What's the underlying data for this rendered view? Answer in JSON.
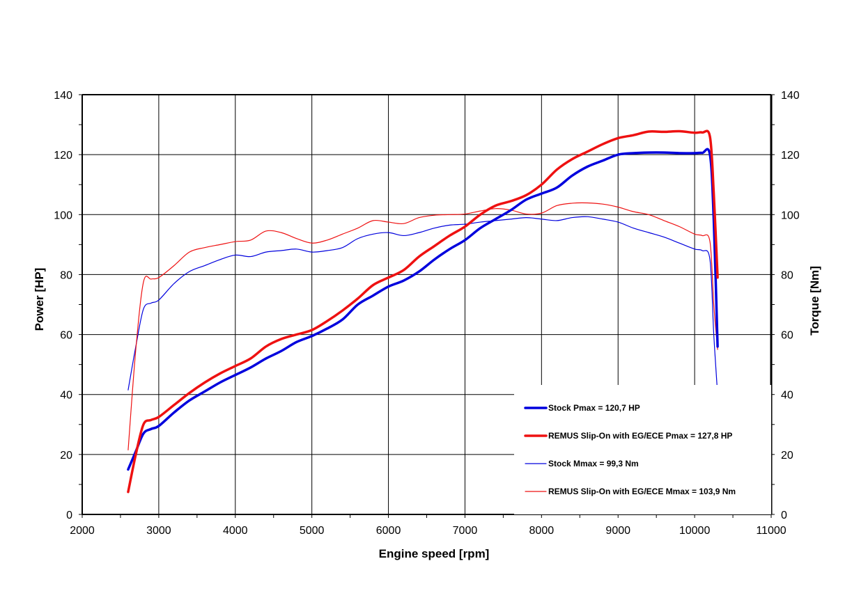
{
  "chart_data": {
    "type": "line",
    "xlabel": "Engine speed [rpm]",
    "ylabel_left": "Power [HP]",
    "ylabel_right": "Torque [Nm]",
    "xlim": [
      2000,
      11000
    ],
    "ylim_left": [
      0,
      140
    ],
    "ylim_right": [
      0,
      140
    ],
    "x_ticks": [
      2000,
      3000,
      4000,
      5000,
      6000,
      7000,
      8000,
      9000,
      10000,
      11000
    ],
    "y_ticks_left": [
      0,
      20,
      40,
      60,
      80,
      100,
      120,
      140
    ],
    "y_ticks_right": [
      0,
      20,
      40,
      60,
      80,
      100,
      120,
      140
    ],
    "grid": true,
    "legend_position": "bottom-right",
    "series": [
      {
        "name": "Stock Pmax = 120,7 HP",
        "axis": "left",
        "color": "#0000dd",
        "width": 3.5,
        "points": [
          [
            2600,
            15
          ],
          [
            2700,
            21
          ],
          [
            2800,
            27
          ],
          [
            2900,
            28.5
          ],
          [
            3000,
            29.5
          ],
          [
            3200,
            34
          ],
          [
            3400,
            38
          ],
          [
            3600,
            41
          ],
          [
            3800,
            44
          ],
          [
            4000,
            46.5
          ],
          [
            4200,
            49
          ],
          [
            4400,
            52
          ],
          [
            4600,
            54.5
          ],
          [
            4800,
            57.5
          ],
          [
            5000,
            59.5
          ],
          [
            5200,
            62
          ],
          [
            5400,
            65
          ],
          [
            5600,
            70
          ],
          [
            5800,
            73
          ],
          [
            6000,
            76
          ],
          [
            6200,
            78
          ],
          [
            6400,
            81
          ],
          [
            6600,
            85
          ],
          [
            6800,
            88.5
          ],
          [
            7000,
            91.5
          ],
          [
            7200,
            95.5
          ],
          [
            7400,
            98.5
          ],
          [
            7600,
            101.5
          ],
          [
            7800,
            105
          ],
          [
            8000,
            107
          ],
          [
            8200,
            109
          ],
          [
            8400,
            113
          ],
          [
            8600,
            116
          ],
          [
            8800,
            118
          ],
          [
            9000,
            120
          ],
          [
            9200,
            120.5
          ],
          [
            9400,
            120.7
          ],
          [
            9600,
            120.7
          ],
          [
            9800,
            120.5
          ],
          [
            10000,
            120.5
          ],
          [
            10100,
            120.6
          ],
          [
            10200,
            120
          ],
          [
            10250,
            98
          ],
          [
            10300,
            56
          ]
        ]
      },
      {
        "name": "REMUS Slip-On with EG/ECE Pmax = 127,8 HP",
        "axis": "left",
        "color": "#ee1111",
        "width": 3.5,
        "points": [
          [
            2600,
            7.5
          ],
          [
            2700,
            20
          ],
          [
            2800,
            30
          ],
          [
            2900,
            31.5
          ],
          [
            3000,
            32.5
          ],
          [
            3200,
            36.5
          ],
          [
            3400,
            40.5
          ],
          [
            3600,
            44
          ],
          [
            3800,
            47
          ],
          [
            4000,
            49.5
          ],
          [
            4200,
            52
          ],
          [
            4400,
            56
          ],
          [
            4600,
            58.5
          ],
          [
            4800,
            60
          ],
          [
            5000,
            61.5
          ],
          [
            5200,
            64.5
          ],
          [
            5400,
            68
          ],
          [
            5600,
            72
          ],
          [
            5800,
            76.5
          ],
          [
            6000,
            79
          ],
          [
            6200,
            81.5
          ],
          [
            6400,
            86
          ],
          [
            6600,
            89.5
          ],
          [
            6800,
            93
          ],
          [
            7000,
            96
          ],
          [
            7200,
            100
          ],
          [
            7400,
            103
          ],
          [
            7600,
            104.5
          ],
          [
            7800,
            106.5
          ],
          [
            8000,
            110
          ],
          [
            8200,
            115
          ],
          [
            8400,
            118.5
          ],
          [
            8600,
            121
          ],
          [
            8800,
            123.5
          ],
          [
            9000,
            125.5
          ],
          [
            9200,
            126.5
          ],
          [
            9400,
            127.7
          ],
          [
            9600,
            127.6
          ],
          [
            9800,
            127.8
          ],
          [
            10000,
            127.3
          ],
          [
            10100,
            127.4
          ],
          [
            10200,
            126
          ],
          [
            10250,
            107
          ],
          [
            10300,
            79
          ]
        ]
      },
      {
        "name": "Stock Mmax = 99,3 Nm",
        "axis": "right",
        "color": "#0000dd",
        "width": 1.2,
        "points": [
          [
            2600,
            41.5
          ],
          [
            2700,
            56
          ],
          [
            2800,
            68.5
          ],
          [
            2900,
            70.5
          ],
          [
            3000,
            71.5
          ],
          [
            3200,
            77
          ],
          [
            3400,
            81
          ],
          [
            3600,
            83
          ],
          [
            3800,
            85
          ],
          [
            4000,
            86.5
          ],
          [
            4200,
            86
          ],
          [
            4400,
            87.5
          ],
          [
            4600,
            88
          ],
          [
            4800,
            88.5
          ],
          [
            5000,
            87.5
          ],
          [
            5200,
            88
          ],
          [
            5400,
            89
          ],
          [
            5600,
            92
          ],
          [
            5800,
            93.5
          ],
          [
            6000,
            94
          ],
          [
            6200,
            93
          ],
          [
            6400,
            94
          ],
          [
            6600,
            95.5
          ],
          [
            6800,
            96.5
          ],
          [
            7000,
            96.8
          ],
          [
            7200,
            97.5
          ],
          [
            7400,
            98
          ],
          [
            7600,
            98.5
          ],
          [
            7800,
            99
          ],
          [
            8000,
            98.5
          ],
          [
            8200,
            98
          ],
          [
            8400,
            99
          ],
          [
            8600,
            99.3
          ],
          [
            8800,
            98.5
          ],
          [
            9000,
            97.5
          ],
          [
            9200,
            95.5
          ],
          [
            9400,
            94
          ],
          [
            9600,
            92.5
          ],
          [
            9800,
            90.5
          ],
          [
            10000,
            88.5
          ],
          [
            10100,
            88
          ],
          [
            10200,
            85
          ],
          [
            10250,
            60
          ],
          [
            10300,
            40
          ]
        ]
      },
      {
        "name": "REMUS Slip-On with EG/ECE Mmax = 103,9 Nm",
        "axis": "right",
        "color": "#ee1111",
        "width": 1.2,
        "points": [
          [
            2600,
            21.5
          ],
          [
            2700,
            55
          ],
          [
            2800,
            77.5
          ],
          [
            2900,
            78.5
          ],
          [
            3000,
            79
          ],
          [
            3200,
            83
          ],
          [
            3400,
            87.5
          ],
          [
            3600,
            89
          ],
          [
            3800,
            90
          ],
          [
            4000,
            91
          ],
          [
            4200,
            91.5
          ],
          [
            4400,
            94.5
          ],
          [
            4600,
            94
          ],
          [
            4800,
            92
          ],
          [
            5000,
            90.5
          ],
          [
            5200,
            91.5
          ],
          [
            5400,
            93.5
          ],
          [
            5600,
            95.5
          ],
          [
            5800,
            98
          ],
          [
            6000,
            97.5
          ],
          [
            6200,
            97
          ],
          [
            6400,
            99
          ],
          [
            6600,
            99.8
          ],
          [
            6800,
            100
          ],
          [
            7000,
            100.2
          ],
          [
            7200,
            101.2
          ],
          [
            7400,
            102
          ],
          [
            7600,
            101.5
          ],
          [
            7800,
            100.2
          ],
          [
            8000,
            100.5
          ],
          [
            8200,
            103
          ],
          [
            8400,
            103.8
          ],
          [
            8600,
            103.9
          ],
          [
            8800,
            103.5
          ],
          [
            9000,
            102.5
          ],
          [
            9200,
            101
          ],
          [
            9400,
            100
          ],
          [
            9600,
            98
          ],
          [
            9800,
            96
          ],
          [
            10000,
            93.5
          ],
          [
            10100,
            93
          ],
          [
            10200,
            91
          ],
          [
            10250,
            70
          ],
          [
            10300,
            55
          ]
        ]
      }
    ]
  }
}
